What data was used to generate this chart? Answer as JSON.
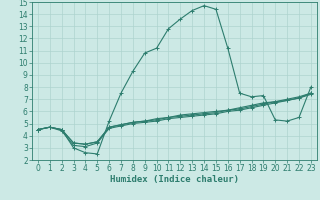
{
  "bg_color": "#cce9e5",
  "line_color": "#2d7d6e",
  "grid_color": "#aed4cf",
  "xlabel": "Humidex (Indice chaleur)",
  "xlim": [
    -0.5,
    23.5
  ],
  "ylim": [
    2,
    15
  ],
  "xticks": [
    0,
    1,
    2,
    3,
    4,
    5,
    6,
    7,
    8,
    9,
    10,
    11,
    12,
    13,
    14,
    15,
    16,
    17,
    18,
    19,
    20,
    21,
    22,
    23
  ],
  "yticks": [
    2,
    3,
    4,
    5,
    6,
    7,
    8,
    9,
    10,
    11,
    12,
    13,
    14,
    15
  ],
  "curve1_x": [
    0,
    1,
    2,
    3,
    4,
    5,
    6,
    7,
    8,
    9,
    10,
    11,
    12,
    13,
    14,
    15,
    16,
    17,
    18,
    19,
    20,
    21,
    22,
    23
  ],
  "curve1_y": [
    4.5,
    4.7,
    4.5,
    3.0,
    2.6,
    2.5,
    5.2,
    7.5,
    9.3,
    10.8,
    11.2,
    12.8,
    13.6,
    14.3,
    14.7,
    14.4,
    11.2,
    7.5,
    7.2,
    7.3,
    5.3,
    5.2,
    5.5,
    8.0
  ],
  "curve2_x": [
    0,
    1,
    2,
    3,
    4,
    5,
    6,
    7,
    8,
    9,
    10,
    11,
    12,
    13,
    14,
    15,
    16,
    17,
    18,
    19,
    20,
    21,
    22,
    23
  ],
  "curve2_y": [
    4.5,
    4.7,
    4.4,
    3.2,
    3.1,
    3.4,
    4.6,
    4.8,
    5.0,
    5.1,
    5.2,
    5.4,
    5.5,
    5.6,
    5.7,
    5.8,
    6.0,
    6.1,
    6.3,
    6.5,
    6.7,
    6.9,
    7.1,
    7.5
  ],
  "curve3_x": [
    0,
    1,
    2,
    3,
    4,
    5,
    6,
    7,
    8,
    9,
    10,
    11,
    12,
    13,
    14,
    15,
    16,
    17,
    18,
    19,
    20,
    21,
    22,
    23
  ],
  "curve3_y": [
    4.5,
    4.7,
    4.5,
    3.4,
    3.3,
    3.5,
    4.7,
    4.9,
    5.1,
    5.2,
    5.4,
    5.5,
    5.7,
    5.8,
    5.9,
    6.0,
    6.1,
    6.3,
    6.5,
    6.7,
    6.8,
    7.0,
    7.2,
    7.5
  ],
  "curve4_x": [
    0,
    1,
    2,
    3,
    4,
    5,
    6,
    7,
    8,
    9,
    10,
    11,
    12,
    13,
    14,
    15,
    16,
    17,
    18,
    19,
    20,
    21,
    22,
    23
  ],
  "curve4_y": [
    4.5,
    4.7,
    4.5,
    3.4,
    3.3,
    3.5,
    4.7,
    4.9,
    5.1,
    5.2,
    5.3,
    5.5,
    5.6,
    5.7,
    5.8,
    5.9,
    6.1,
    6.2,
    6.4,
    6.6,
    6.8,
    6.9,
    7.1,
    7.4
  ],
  "label_fontsize": 6.5,
  "tick_fontsize": 5.5
}
